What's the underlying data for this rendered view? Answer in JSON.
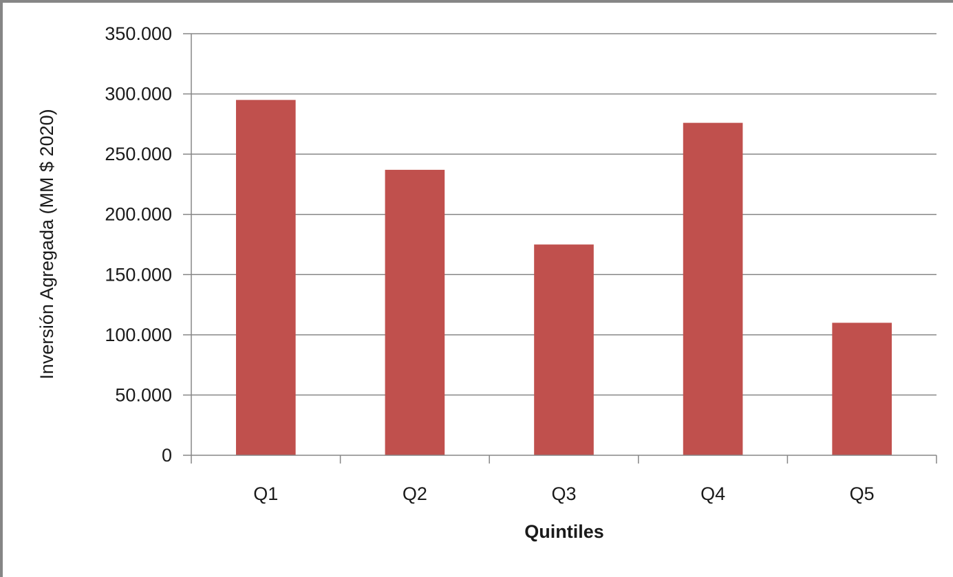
{
  "chart_data": {
    "type": "bar",
    "categories": [
      "Q1",
      "Q2",
      "Q3",
      "Q4",
      "Q5"
    ],
    "values": [
      295000,
      237000,
      175000,
      276000,
      110000
    ],
    "xlabel": "Quintiles",
    "ylabel": "Inversión Agregada (MM $ 2020)",
    "ylim": [
      0,
      350000
    ],
    "yticks": [
      0,
      50000,
      100000,
      150000,
      200000,
      250000,
      300000,
      350000
    ],
    "ytick_labels": [
      "0",
      "50.000",
      "100.000",
      "150.000",
      "200.000",
      "250.000",
      "300.000",
      "350.000"
    ],
    "grid": true,
    "legend": "none",
    "bar_color": "#c0504d",
    "grid_color": "#868686"
  }
}
